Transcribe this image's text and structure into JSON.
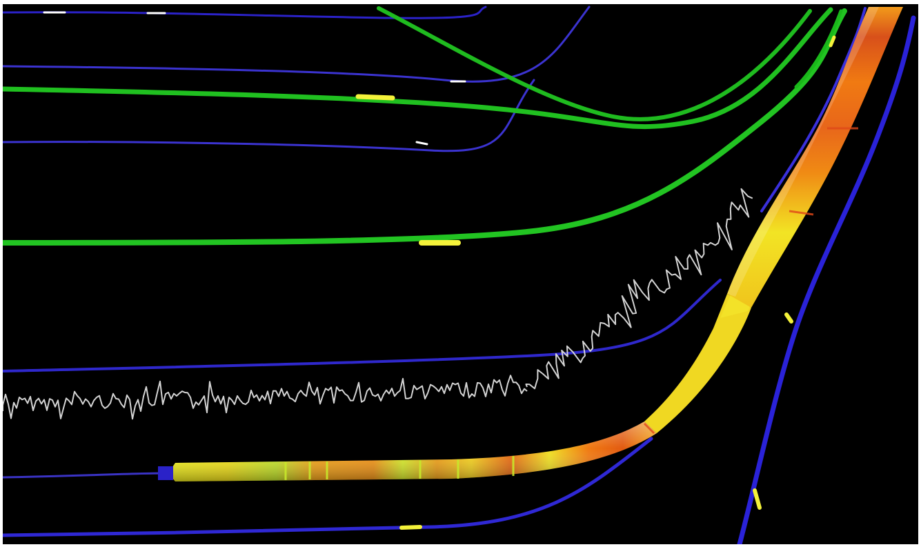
{
  "scene": {
    "background": "#000000",
    "colors": {
      "blue_well": "#2b22c8",
      "blue_well_light": "#4a44e0",
      "green_well": "#1fc01f",
      "green_well_light": "#6cf06c",
      "log_trace": "#d8d8d8",
      "tube_orange": "#f07a10",
      "tube_yellow": "#f2f020",
      "tube_red": "#d83a10",
      "marker_yellow": "#f4f23a",
      "marker_white": "#ffffff"
    },
    "objects": [
      "blue-well-trajectory",
      "green-well-trajectory",
      "well-log-curve",
      "property-tube"
    ]
  }
}
